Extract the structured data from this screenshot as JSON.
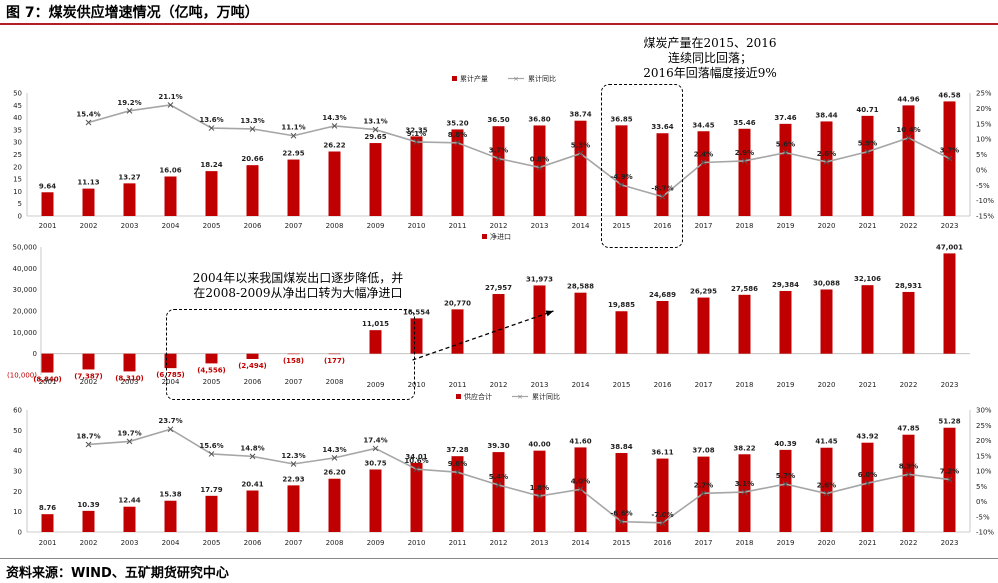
{
  "page": {
    "title": "图 7：煤炭供应增速情况（亿吨，万吨）",
    "source": "资料来源：WIND、五矿期货研究中心"
  },
  "annotations": {
    "top_note": [
      "煤炭产量在2015、2016",
      "连续同比回落；",
      "2016年回落幅度接近9%"
    ],
    "middle_note": [
      "2004年以来我国煤炭出口逐步降低，并",
      "在2008-2009从净出口转为大幅净进口"
    ]
  },
  "colors": {
    "bar": "#c00000",
    "line": "#a6a6a6",
    "text_red": "#c00000"
  },
  "chart_data": [
    {
      "type": "bar",
      "legend": [
        "累计产量",
        "累计同比"
      ],
      "categories": [
        "2001",
        "2002",
        "2003",
        "2004",
        "2005",
        "2006",
        "2007",
        "2008",
        "2009",
        "2010",
        "2011",
        "2012",
        "2013",
        "2014",
        "2015",
        "2016",
        "2017",
        "2018",
        "2019",
        "2020",
        "2021",
        "2022",
        "2023"
      ],
      "values": [
        9.64,
        11.13,
        13.27,
        16.06,
        18.24,
        20.66,
        22.95,
        26.22,
        29.65,
        32.35,
        35.2,
        36.5,
        36.8,
        38.74,
        36.85,
        33.64,
        34.45,
        35.46,
        37.46,
        38.44,
        40.71,
        44.96,
        46.58
      ],
      "yoy": [
        null,
        15.4,
        19.2,
        21.1,
        13.6,
        13.3,
        11.1,
        14.3,
        13.1,
        9.1,
        8.8,
        3.7,
        0.8,
        5.3,
        -4.9,
        -8.7,
        2.4,
        2.9,
        5.6,
        2.6,
        5.9,
        10.4,
        3.7
      ],
      "yoy_labels": [
        "",
        "15.4%",
        "19.2%",
        "21.1%",
        "13.6%",
        "13.3%",
        "11.1%",
        "14.3%",
        "13.1%",
        "9.1%",
        "8.8%",
        "3.7%",
        "0.8%",
        "5.3%",
        "-4.9%",
        "-8.7%",
        "2.4%",
        "2.9%",
        "5.6%",
        "2.6%",
        "5.9%",
        "10.4%",
        "3.7%"
      ],
      "ylim": [
        0,
        50
      ],
      "yticks": [
        "0",
        "5",
        "10",
        "15",
        "20",
        "25",
        "30",
        "35",
        "40",
        "45",
        "50"
      ],
      "y2lim": [
        -15,
        25
      ],
      "y2ticks": [
        "-15%",
        "-10%",
        "-5%",
        "0%",
        "5%",
        "10%",
        "15%",
        "20%",
        "25%"
      ]
    },
    {
      "type": "bar",
      "legend": [
        "净进口"
      ],
      "categories": [
        "2001",
        "2002",
        "2003",
        "2004",
        "2005",
        "2006",
        "2007",
        "2008",
        "2009",
        "2010",
        "2011",
        "2012",
        "2013",
        "2014",
        "2015",
        "2016",
        "2017",
        "2018",
        "2019",
        "2020",
        "2021",
        "2022",
        "2023"
      ],
      "values": [
        -8840,
        -7387,
        -8310,
        -6785,
        -4556,
        -2494,
        -158,
        -177,
        11015,
        16554,
        20770,
        27957,
        31973,
        28588,
        19885,
        24689,
        26295,
        27586,
        29384,
        30088,
        32106,
        28931,
        47001
      ],
      "value_labels": [
        "(8,840)",
        "(7,387)",
        "(8,310)",
        "(6,785)",
        "(4,556)",
        "(2,494)",
        "(158)",
        "(177)",
        "11,015",
        "16,554",
        "20,770",
        "27,957",
        "31,973",
        "28,588",
        "19,885",
        "24,689",
        "26,295",
        "27,586",
        "29,384",
        "30,088",
        "32,106",
        "28,931",
        "47,001"
      ],
      "ylim": [
        -10000,
        50000
      ],
      "yticks": [
        "(10,000)",
        "0",
        "10,000",
        "20,000",
        "30,000",
        "40,000",
        "50,000"
      ]
    },
    {
      "type": "bar",
      "legend": [
        "供应合计",
        "累计同比"
      ],
      "categories": [
        "2001",
        "2002",
        "2003",
        "2004",
        "2005",
        "2006",
        "2007",
        "2008",
        "2009",
        "2010",
        "2011",
        "2012",
        "2013",
        "2014",
        "2015",
        "2016",
        "2017",
        "2018",
        "2019",
        "2020",
        "2021",
        "2022",
        "2023"
      ],
      "values": [
        8.76,
        10.39,
        12.44,
        15.38,
        17.79,
        20.41,
        22.93,
        26.2,
        30.75,
        34.01,
        37.28,
        39.3,
        40.0,
        41.6,
        38.84,
        36.11,
        37.08,
        38.22,
        40.39,
        41.45,
        43.92,
        47.85,
        51.28
      ],
      "yoy": [
        null,
        18.7,
        19.7,
        23.7,
        15.6,
        14.8,
        12.3,
        14.3,
        17.4,
        10.6,
        9.6,
        5.4,
        1.8,
        4.0,
        -6.6,
        -7.0,
        2.7,
        3.1,
        5.7,
        2.6,
        6.0,
        8.9,
        7.2
      ],
      "yoy_labels": [
        "",
        "18.7%",
        "19.7%",
        "23.7%",
        "15.6%",
        "14.8%",
        "12.3%",
        "14.3%",
        "17.4%",
        "10.6%",
        "9.6%",
        "5.4%",
        "1.8%",
        "4.0%",
        "-6.6%",
        "-7.0%",
        "2.7%",
        "3.1%",
        "5.7%",
        "2.6%",
        "6.0%",
        "8.9%",
        "7.2%"
      ],
      "ylim": [
        0,
        60
      ],
      "yticks": [
        "0",
        "10",
        "20",
        "30",
        "40",
        "50",
        "60"
      ],
      "y2lim": [
        -10,
        30
      ],
      "y2ticks": [
        "-10%",
        "-5%",
        "0%",
        "5%",
        "10%",
        "15%",
        "20%",
        "25%",
        "30%"
      ]
    }
  ]
}
